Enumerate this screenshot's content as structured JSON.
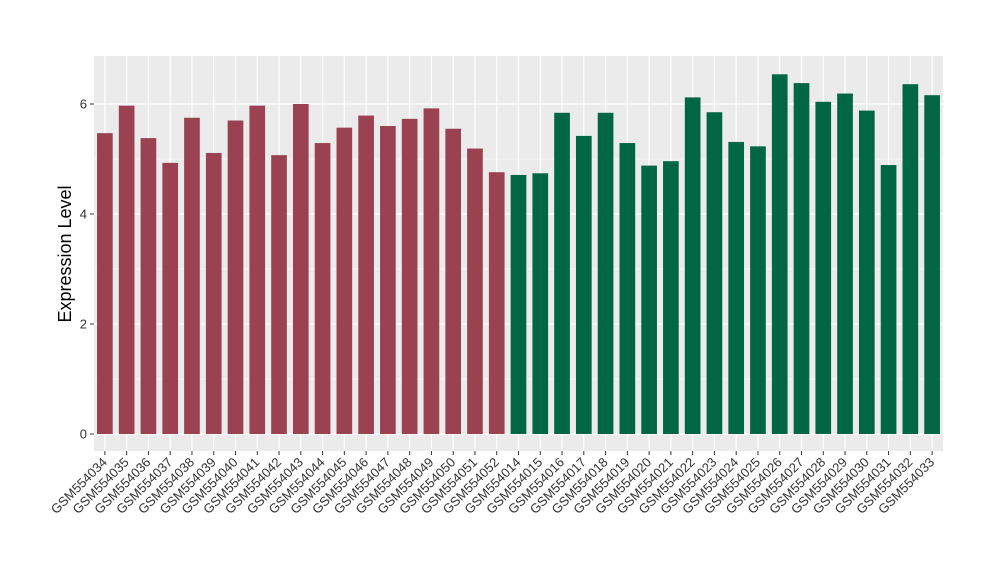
{
  "chart_data": {
    "type": "bar",
    "title": "",
    "xlabel": "",
    "ylabel": "Expression Level",
    "ylim": [
      -0.3,
      6.85
    ],
    "yticks": [
      0,
      2,
      4,
      6
    ],
    "grid": true,
    "legend": "none",
    "colors": {
      "panel_bg": "#EBEBEB",
      "grid_major": "#FFFFFF",
      "group_1": "#9A4251",
      "group_2": "#006644"
    },
    "categories": [
      "GSM554034",
      "GSM554035",
      "GSM554036",
      "GSM554037",
      "GSM554038",
      "GSM554039",
      "GSM554040",
      "GSM554041",
      "GSM554042",
      "GSM554043",
      "GSM554044",
      "GSM554045",
      "GSM554046",
      "GSM554047",
      "GSM554048",
      "GSM554049",
      "GSM554050",
      "GSM554051",
      "GSM554052",
      "GSM554014",
      "GSM554015",
      "GSM554016",
      "GSM554017",
      "GSM554018",
      "GSM554019",
      "GSM554020",
      "GSM554021",
      "GSM554022",
      "GSM554023",
      "GSM554024",
      "GSM554025",
      "GSM554026",
      "GSM554027",
      "GSM554028",
      "GSM554029",
      "GSM554030",
      "GSM554031",
      "GSM554032",
      "GSM554033"
    ],
    "values": [
      5.47,
      5.97,
      5.38,
      4.93,
      5.75,
      5.11,
      5.7,
      5.97,
      5.07,
      6.0,
      5.29,
      5.57,
      5.79,
      5.6,
      5.73,
      5.92,
      5.55,
      5.19,
      4.76,
      4.71,
      4.74,
      5.84,
      5.42,
      5.84,
      5.29,
      4.88,
      4.96,
      6.12,
      5.85,
      5.31,
      5.23,
      6.54,
      6.38,
      6.04,
      6.19,
      5.88,
      4.89,
      6.36,
      6.16
    ],
    "groups": [
      1,
      1,
      1,
      1,
      1,
      1,
      1,
      1,
      1,
      1,
      1,
      1,
      1,
      1,
      1,
      1,
      1,
      1,
      1,
      2,
      2,
      2,
      2,
      2,
      2,
      2,
      2,
      2,
      2,
      2,
      2,
      2,
      2,
      2,
      2,
      2,
      2,
      2,
      2
    ]
  }
}
